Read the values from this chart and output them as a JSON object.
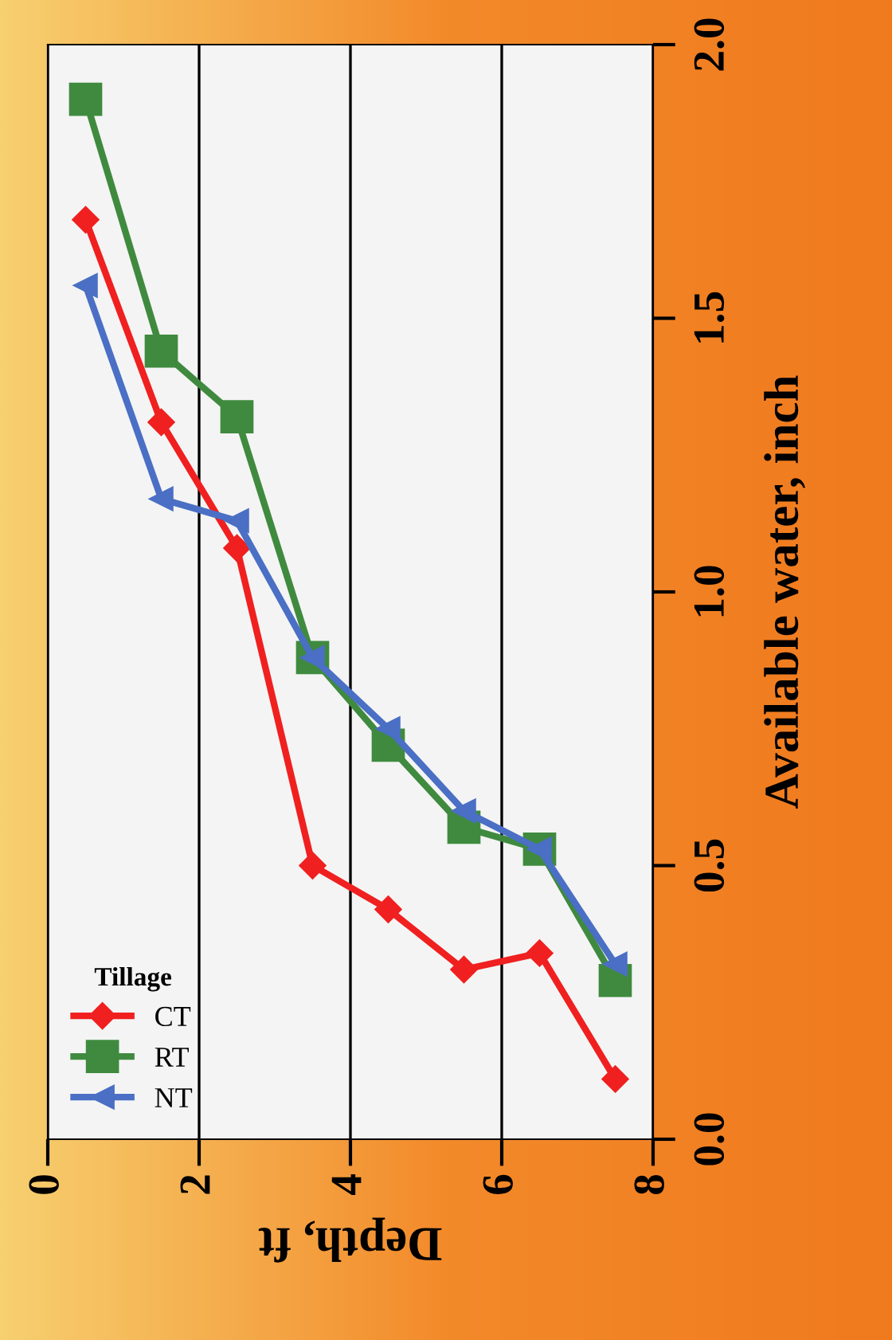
{
  "chart_data": {
    "type": "line",
    "xlabel": "Depth, ft",
    "ylabel": "Available water, inch",
    "legend_title": "Tillage",
    "x": [
      0.5,
      1.5,
      2.5,
      3.5,
      4.5,
      5.5,
      6.5,
      7.5
    ],
    "series": [
      {
        "name": "CT",
        "color": "#f02020",
        "marker": "diamond",
        "values": [
          1.68,
          1.31,
          1.08,
          0.5,
          0.42,
          0.31,
          0.34,
          0.11
        ]
      },
      {
        "name": "RT",
        "color": "#3f8a3f",
        "marker": "square",
        "values": [
          1.9,
          1.44,
          1.32,
          0.88,
          0.72,
          0.57,
          0.53,
          0.29
        ]
      },
      {
        "name": "NT",
        "color": "#4a6fc4",
        "marker": "triangle",
        "values": [
          1.56,
          1.17,
          1.13,
          0.88,
          0.75,
          0.6,
          0.53,
          0.32
        ]
      }
    ],
    "xlim": [
      0,
      8
    ],
    "xticks": [
      0,
      2,
      4,
      6,
      8
    ],
    "ylim": [
      0,
      2
    ],
    "yticks": [
      {
        "value": 0,
        "label": "0.0"
      },
      {
        "value": 0.5,
        "label": "0.5"
      },
      {
        "value": 1,
        "label": "1.0"
      },
      {
        "value": 1.5,
        "label": "1.5"
      },
      {
        "value": 2,
        "label": "2.0"
      }
    ],
    "grid": "x",
    "legend": "bottom left",
    "line_style": "solid"
  }
}
